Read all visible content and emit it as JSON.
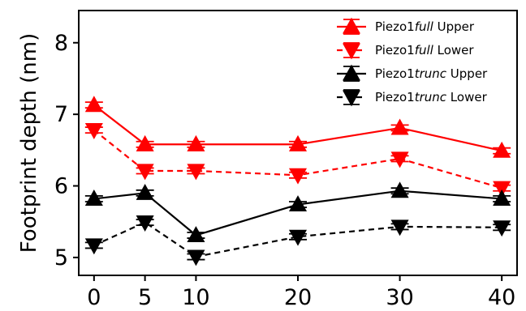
{
  "chart_data": {
    "type": "line",
    "title": "",
    "xlabel": "",
    "ylabel": "Footprint depth (nm)",
    "x": [
      0,
      5,
      10,
      20,
      30,
      40
    ],
    "xticks": [
      "0",
      "5",
      "10",
      "20",
      "30",
      "40"
    ],
    "yticks": [
      "5",
      "6",
      "7",
      "8"
    ],
    "xlim": [
      -1.5,
      41.5
    ],
    "ylim": [
      4.75,
      8.45
    ],
    "grid": false,
    "legend_position": "top-right",
    "series": [
      {
        "name_prefix": "Piezo1",
        "name_italic": "full",
        "name_suffix": " Upper",
        "color": "#ff0000",
        "linestyle": "solid",
        "marker": "triangle-up",
        "values": [
          7.13,
          6.58,
          6.58,
          6.58,
          6.81,
          6.49
        ],
        "errors": [
          0.04,
          0.04,
          0.04,
          0.04,
          0.04,
          0.04
        ]
      },
      {
        "name_prefix": "Piezo1",
        "name_italic": "full",
        "name_suffix": " Lower",
        "color": "#ff0000",
        "linestyle": "dashed",
        "marker": "triangle-down",
        "values": [
          6.78,
          6.21,
          6.21,
          6.15,
          6.38,
          5.97
        ],
        "errors": [
          0.04,
          0.04,
          0.04,
          0.04,
          0.04,
          0.04
        ]
      },
      {
        "name_prefix": "Piezo1",
        "name_italic": "trunc",
        "name_suffix": " Upper",
        "color": "#000000",
        "linestyle": "solid",
        "marker": "triangle-up",
        "values": [
          5.82,
          5.9,
          5.31,
          5.74,
          5.93,
          5.82
        ],
        "errors": [
          0.04,
          0.04,
          0.04,
          0.04,
          0.04,
          0.04
        ]
      },
      {
        "name_prefix": "Piezo1",
        "name_italic": "trunc",
        "name_suffix": " Lower",
        "color": "#000000",
        "linestyle": "dashed",
        "marker": "triangle-down",
        "values": [
          5.17,
          5.49,
          5.01,
          5.29,
          5.43,
          5.42
        ],
        "errors": [
          0.04,
          0.04,
          0.04,
          0.04,
          0.04,
          0.04
        ]
      }
    ]
  }
}
